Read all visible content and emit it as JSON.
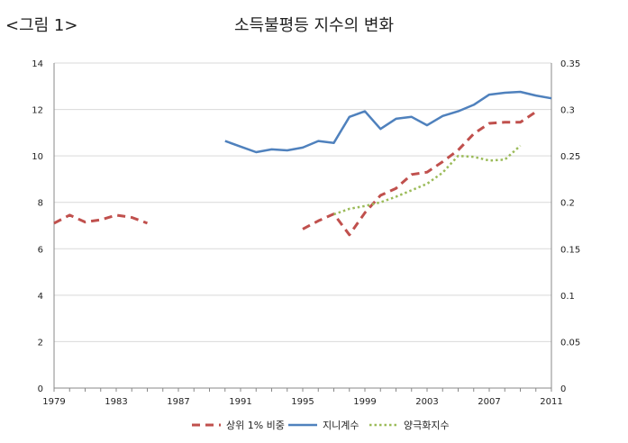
{
  "figure_label": "<그림 1>",
  "colors": {
    "top1": "#c0504d",
    "gini": "#4f81bd",
    "polar": "#9bbb59",
    "grid": "#d9d9d9",
    "axis": "#888888"
  },
  "chart_data": {
    "type": "line",
    "title": "소득불평등 지수의 변화",
    "xlabel": "",
    "ylabel": "",
    "xlim": [
      1979,
      2011
    ],
    "ylim": [
      0,
      14
    ],
    "y2lim": [
      0,
      0.35
    ],
    "x_ticks": [
      "1979",
      "1983",
      "1987",
      "1991",
      "1995",
      "1999",
      "2003",
      "2007",
      "2011"
    ],
    "y_ticks": [
      "0",
      "2",
      "4",
      "6",
      "8",
      "10",
      "12",
      "14"
    ],
    "y2_ticks": [
      "0",
      "0.05",
      "0.1",
      "0.15",
      "0.2",
      "0.25",
      "0.3",
      "0.35"
    ],
    "legend_position": "bottom",
    "series": [
      {
        "name": "상위 1% 비중",
        "axis": "left",
        "style": "dashed",
        "segments": [
          {
            "x": [
              1979,
              1980,
              1981,
              1982,
              1983,
              1984,
              1985
            ],
            "y": [
              7.1,
              7.45,
              7.15,
              7.25,
              7.45,
              7.35,
              7.1
            ]
          },
          {
            "x": [
              1995,
              1996,
              1997,
              1998,
              1999,
              2000,
              2001,
              2002,
              2003,
              2004,
              2005,
              2006,
              2007,
              2008,
              2009,
              2010
            ],
            "y": [
              6.85,
              7.2,
              7.5,
              6.6,
              7.55,
              8.3,
              8.6,
              9.2,
              9.3,
              9.75,
              10.25,
              10.95,
              11.4,
              11.45,
              11.45,
              11.9
            ]
          }
        ]
      },
      {
        "name": "지니계수",
        "axis": "right",
        "style": "solid",
        "segments": [
          {
            "x": [
              1990,
              1991,
              1992,
              1993,
              1994,
              1995,
              1996,
              1997,
              1998,
              1999,
              2000,
              2001,
              2002,
              2003,
              2004,
              2005,
              2006,
              2007,
              2008,
              2009,
              2010,
              2011
            ],
            "y": [
              0.266,
              0.26,
              0.254,
              0.257,
              0.256,
              0.259,
              0.266,
              0.264,
              0.292,
              0.298,
              0.279,
              0.29,
              0.292,
              0.283,
              0.293,
              0.298,
              0.305,
              0.316,
              0.318,
              0.319,
              0.315,
              0.312
            ]
          }
        ]
      },
      {
        "name": "양극화지수",
        "axis": "right",
        "style": "dotted",
        "segments": [
          {
            "x": [
              1997,
              1998,
              1999,
              2000,
              2001,
              2002,
              2003,
              2004,
              2005,
              2006,
              2007,
              2008,
              2009
            ],
            "y": [
              0.187,
              0.193,
              0.196,
              0.2,
              0.206,
              0.213,
              0.22,
              0.232,
              0.25,
              0.249,
              0.245,
              0.246,
              0.261
            ]
          }
        ]
      }
    ]
  }
}
